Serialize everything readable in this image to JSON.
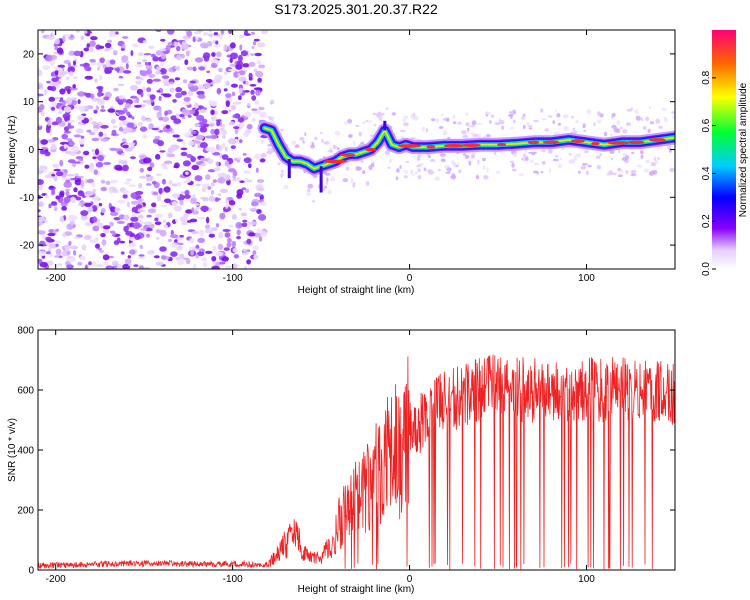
{
  "figure": {
    "title": "S173.2025.301.20.37.R22"
  },
  "chart_data": [
    {
      "type": "heatmap",
      "title": "",
      "xlabel": "Height of straight line (km)",
      "ylabel": "Frequency (Hz)",
      "xlim": [
        -210,
        150
      ],
      "ylim": [
        -25,
        25
      ],
      "xticks": [
        -200,
        -100,
        0,
        100
      ],
      "yticks": [
        -20,
        -10,
        0,
        10,
        20
      ],
      "colorbar": {
        "label": "Normalized spectral amplitude",
        "range": [
          0,
          1
        ],
        "ticks": [
          0.0,
          0.2,
          0.4,
          0.6,
          0.8
        ]
      },
      "noise_region_x": [
        -210,
        -82
      ],
      "ridge": {
        "description": "frequency of peak amplitude vs height",
        "x": [
          -82,
          -78,
          -74,
          -70,
          -66,
          -62,
          -58,
          -54,
          -50,
          -46,
          -42,
          -38,
          -34,
          -30,
          -26,
          -22,
          -18,
          -14,
          -10,
          -6,
          -2,
          2,
          10,
          20,
          30,
          40,
          50,
          60,
          70,
          80,
          90,
          100,
          110,
          120,
          130,
          140,
          150
        ],
        "y": [
          4.5,
          4,
          1,
          -1.5,
          -2.5,
          -2.5,
          -3,
          -4,
          -3.5,
          -3,
          -2.5,
          -1.5,
          -1,
          -1,
          -0.5,
          0,
          1.5,
          4,
          1,
          0.5,
          1,
          0.5,
          0.5,
          0.8,
          0.8,
          1,
          1,
          1.2,
          1.5,
          1.5,
          2,
          1.5,
          1,
          1.5,
          1.5,
          2,
          2.5
        ]
      }
    },
    {
      "type": "line",
      "title": "",
      "xlabel": "Height of straight line (km)",
      "ylabel": "SNR (10 * v/v)",
      "xlim": [
        -210,
        150
      ],
      "ylim": [
        0,
        800
      ],
      "xticks": [
        -200,
        -100,
        0,
        100
      ],
      "yticks": [
        0,
        200,
        400,
        600,
        800
      ],
      "color": "#ee2222",
      "series": [
        {
          "name": "SNR",
          "x": [
            -210,
            -200,
            -180,
            -160,
            -140,
            -120,
            -100,
            -80,
            -75,
            -70,
            -65,
            -60,
            -55,
            -50,
            -45,
            -40,
            -35,
            -30,
            -25,
            -20,
            -15,
            -10,
            -5,
            0,
            5,
            10,
            15,
            20,
            25,
            30,
            35,
            40,
            45,
            50,
            55,
            60,
            70,
            80,
            90,
            100,
            110,
            120,
            130,
            140,
            150
          ],
          "y": [
            15,
            15,
            18,
            22,
            22,
            20,
            20,
            18,
            50,
            90,
            110,
            70,
            40,
            40,
            80,
            150,
            200,
            230,
            260,
            300,
            350,
            380,
            420,
            460,
            490,
            520,
            540,
            560,
            570,
            580,
            590,
            600,
            610,
            615,
            610,
            600,
            600,
            600,
            600,
            610,
            600,
            610,
            600,
            590,
            580
          ]
        }
      ]
    }
  ]
}
